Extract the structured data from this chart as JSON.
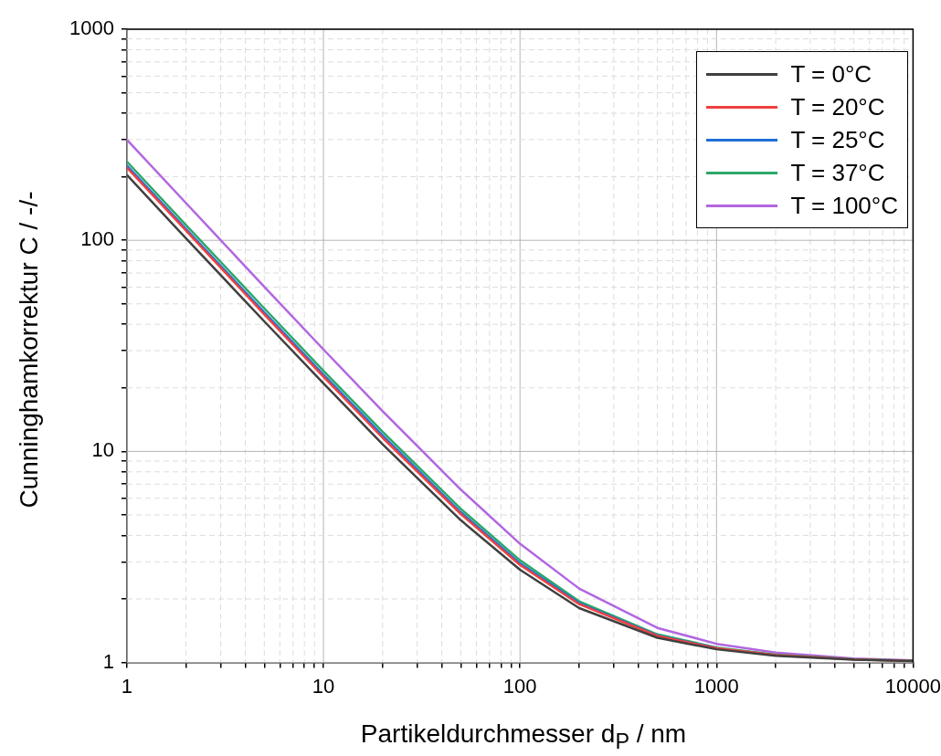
{
  "chart_data": {
    "type": "line",
    "xlabel": "Partikeldurchmesser d$_{P}$ / nm",
    "ylabel": "Cunninghamkorrektur C / -/-",
    "log": "xy",
    "grid": true,
    "legend": "top right",
    "marker": "none",
    "line_style": "solid",
    "x": [
      1,
      2,
      5,
      10,
      20,
      50,
      100,
      200,
      500,
      1000,
      2000,
      5000,
      10000
    ],
    "xlim": [
      1,
      10000
    ],
    "ylim": [
      1,
      1000
    ],
    "xticks": [
      1,
      {
        "value": 2,
        "label": null
      },
      {
        "value": 3,
        "label": null
      },
      {
        "value": 4,
        "label": null
      },
      {
        "value": 5,
        "label": null
      },
      {
        "value": 6,
        "label": null
      },
      {
        "value": 7,
        "label": null
      },
      {
        "value": 8,
        "label": null
      },
      {
        "value": 9,
        "label": null
      },
      10,
      {
        "value": 20,
        "label": null
      },
      {
        "value": 30,
        "label": null
      },
      {
        "value": 40,
        "label": null
      },
      {
        "value": 50,
        "label": null
      },
      {
        "value": 60,
        "label": null
      },
      {
        "value": 70,
        "label": null
      },
      {
        "value": 80,
        "label": null
      },
      {
        "value": 90,
        "label": null
      },
      100,
      {
        "value": 200,
        "label": null
      },
      {
        "value": 300,
        "label": null
      },
      {
        "value": 400,
        "label": null
      },
      {
        "value": 500,
        "label": null
      },
      {
        "value": 600,
        "label": null
      },
      {
        "value": 700,
        "label": null
      },
      {
        "value": 800,
        "label": null
      },
      {
        "value": 900,
        "label": null
      },
      1000,
      {
        "value": 2000,
        "label": null
      },
      {
        "value": 3000,
        "label": null
      },
      {
        "value": 4000,
        "label": null
      },
      {
        "value": 5000,
        "label": null
      },
      {
        "value": 6000,
        "label": null
      },
      {
        "value": 7000,
        "label": null
      },
      {
        "value": 8000,
        "label": null
      },
      {
        "value": 9000,
        "label": null
      },
      10000
    ],
    "yticks": [
      1,
      {
        "value": 2,
        "label": null
      },
      {
        "value": 3,
        "label": null
      },
      {
        "value": 4,
        "label": null
      },
      {
        "value": 5,
        "label": null
      },
      {
        "value": 6,
        "label": null
      },
      {
        "value": 7,
        "label": null
      },
      {
        "value": 8,
        "label": null
      },
      {
        "value": 9,
        "label": null
      },
      10,
      {
        "value": 20,
        "label": null
      },
      {
        "value": 30,
        "label": null
      },
      {
        "value": 40,
        "label": null
      },
      {
        "value": 50,
        "label": null
      },
      {
        "value": 60,
        "label": null
      },
      {
        "value": 70,
        "label": null
      },
      {
        "value": 80,
        "label": null
      },
      {
        "value": 90,
        "label": null
      },
      100,
      {
        "value": 200,
        "label": null
      },
      {
        "value": 300,
        "label": null
      },
      {
        "value": 400,
        "label": null
      },
      {
        "value": 500,
        "label": null
      },
      {
        "value": 600,
        "label": null
      },
      {
        "value": 700,
        "label": null
      },
      {
        "value": 800,
        "label": null
      },
      {
        "value": 900,
        "label": null
      },
      1000
    ],
    "series": [
      {
        "name": "T = 0°C",
        "color": "#404040",
        "values": [
          204,
          102,
          41.3,
          21.0,
          10.8,
          4.72,
          2.75,
          1.81,
          1.31,
          1.155,
          1.077,
          1.031,
          1.015
        ]
      },
      {
        "name": "T = 20°C",
        "color": "#f04040",
        "values": [
          221,
          111,
          44.6,
          22.6,
          11.6,
          5.05,
          2.9,
          1.89,
          1.336,
          1.167,
          1.084,
          1.033,
          1.017
        ]
      },
      {
        "name": "T = 25°C",
        "color": "#1f6fd6",
        "values": [
          226,
          113,
          45.6,
          23.1,
          11.9,
          5.15,
          2.95,
          1.91,
          1.344,
          1.171,
          null,
          null,
          null
        ]
      },
      {
        "name": "T = 37°C",
        "color": "#2ca86a",
        "values": [
          236,
          118,
          47.6,
          24.1,
          12.4,
          5.34,
          3.05,
          1.95,
          1.359,
          1.178,
          1.089,
          1.036,
          1.018
        ]
      },
      {
        "name": "T = 100°C",
        "color": "#b266e0",
        "values": [
          299,
          150,
          60.2,
          30.4,
          15.5,
          6.59,
          3.65,
          2.24,
          1.459,
          1.226,
          1.113,
          1.045,
          1.023
        ]
      }
    ]
  }
}
